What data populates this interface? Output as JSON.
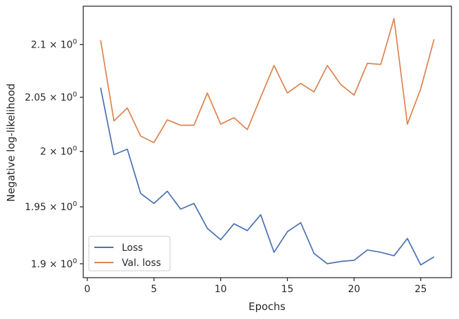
{
  "chart_data": {
    "type": "line",
    "title": "",
    "xlabel": "Epochs",
    "ylabel": "Negative log-likelihood",
    "y_scale": "log",
    "xlim": [
      -0.3,
      27.3
    ],
    "ylim": [
      1.888,
      2.137
    ],
    "x_ticks": [
      0,
      5,
      10,
      15,
      20,
      25
    ],
    "y_ticks": [
      {
        "value": 1.9,
        "mantissa": "1.9"
      },
      {
        "value": 1.95,
        "mantissa": "1.95"
      },
      {
        "value": 2.0,
        "mantissa": "2"
      },
      {
        "value": 2.05,
        "mantissa": "2.05"
      },
      {
        "value": 2.1,
        "mantissa": "2.1"
      }
    ],
    "y_tick_suffix": "× 10",
    "y_tick_exponent": "0",
    "grid": false,
    "legend_position": "lower-left",
    "x": [
      1,
      2,
      3,
      4,
      5,
      6,
      7,
      8,
      9,
      10,
      11,
      12,
      13,
      14,
      15,
      16,
      17,
      18,
      19,
      20,
      21,
      22,
      23,
      24,
      25,
      26
    ],
    "series": [
      {
        "name": "Loss",
        "color": "#4c72b0",
        "values": [
          2.059,
          1.997,
          2.002,
          1.962,
          1.953,
          1.964,
          1.948,
          1.953,
          1.931,
          1.921,
          1.935,
          1.929,
          1.943,
          1.91,
          1.928,
          1.936,
          1.909,
          1.9,
          1.902,
          1.903,
          1.912,
          1.91,
          1.907,
          1.922,
          1.899,
          1.906
        ]
      },
      {
        "name": "Val. loss",
        "color": "#dd8452",
        "values": [
          2.104,
          2.028,
          2.04,
          2.014,
          2.008,
          2.029,
          2.024,
          2.024,
          2.054,
          2.025,
          2.031,
          2.02,
          2.05,
          2.08,
          2.054,
          2.063,
          2.055,
          2.08,
          2.062,
          2.052,
          2.082,
          2.081,
          2.125,
          2.025,
          2.058,
          2.105
        ]
      }
    ]
  }
}
